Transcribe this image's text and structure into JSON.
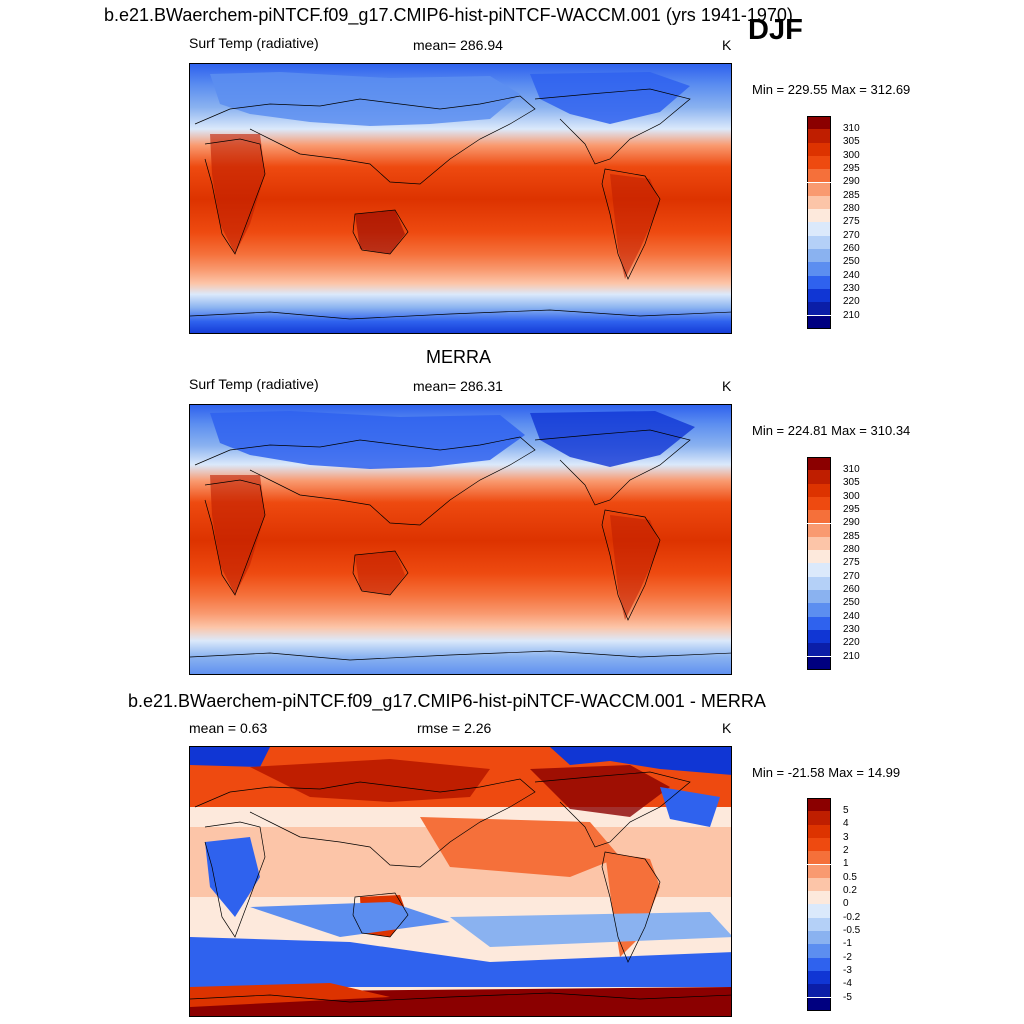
{
  "figure": {
    "title": "b.e21.BWaerchem-piNTCF.f09_g17.CMIP6-hist-piNTCF-WACCM.001 (yrs 1941-1970)",
    "season": "DJF"
  },
  "panels": [
    {
      "id": "model",
      "title": "",
      "variable": "Surf Temp (radiative)",
      "stat_text": "mean= 286.94",
      "units": "K",
      "range_text": "Min = 229.55 Max = 312.69",
      "colorbar": [
        "310",
        "305",
        "300",
        "295",
        "290",
        "285",
        "280",
        "275",
        "270",
        "260",
        "250",
        "240",
        "230",
        "220",
        "210"
      ],
      "colors": [
        "#8b0000",
        "#bf1e00",
        "#dd3300",
        "#ee4a10",
        "#f5703a",
        "#f99a70",
        "#fcc5a8",
        "#fde9dc",
        "#dbe9fb",
        "#b4d0f7",
        "#8ab2f0",
        "#5c8ef0",
        "#2f62ee",
        "#1036d4",
        "#0b1ea8",
        "#000080"
      ]
    },
    {
      "id": "obs",
      "title": "MERRA",
      "variable": "Surf Temp (radiative)",
      "stat_text": "mean= 286.31",
      "units": "K",
      "range_text": "Min = 224.81 Max = 310.34",
      "colorbar": [
        "310",
        "305",
        "300",
        "295",
        "290",
        "285",
        "280",
        "275",
        "270",
        "260",
        "250",
        "240",
        "230",
        "220",
        "210"
      ],
      "colors": [
        "#8b0000",
        "#bf1e00",
        "#dd3300",
        "#ee4a10",
        "#f5703a",
        "#f99a70",
        "#fcc5a8",
        "#fde9dc",
        "#dbe9fb",
        "#b4d0f7",
        "#8ab2f0",
        "#5c8ef0",
        "#2f62ee",
        "#1036d4",
        "#0b1ea8",
        "#000080"
      ]
    },
    {
      "id": "diff",
      "title": "b.e21.BWaerchem-piNTCF.f09_g17.CMIP6-hist-piNTCF-WACCM.001 - MERRA",
      "mean_text": "mean =   0.63",
      "rmse_text": "rmse =   2.26",
      "units": "K",
      "range_text": "Min = -21.58 Max =  14.99",
      "colorbar": [
        "5",
        "4",
        "3",
        "2",
        "1",
        "0.5",
        "0.2",
        "0",
        "-0.2",
        "-0.5",
        "-1",
        "-2",
        "-3",
        "-4",
        "-5"
      ],
      "colors": [
        "#8b0000",
        "#bf1e00",
        "#dd3300",
        "#ee4a10",
        "#f5703a",
        "#f99a70",
        "#fcc5a8",
        "#fde9dc",
        "#dbe9fb",
        "#b4d0f7",
        "#8ab2f0",
        "#5c8ef0",
        "#2f62ee",
        "#1036d4",
        "#0b1ea8",
        "#000080"
      ]
    }
  ]
}
